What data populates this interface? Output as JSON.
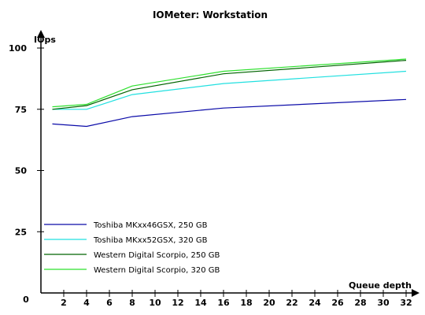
{
  "chart_data": {
    "type": "line",
    "title": "IOMeter: Workstation",
    "xlabel": "Queue depth",
    "ylabel": "IOps",
    "x": [
      1,
      4,
      8,
      16,
      32
    ],
    "xticks": [
      "0",
      "2",
      "4",
      "6",
      "8",
      "10",
      "12",
      "14",
      "16",
      "18",
      "20",
      "22",
      "24",
      "26",
      "28",
      "30",
      "32"
    ],
    "yticks": [
      "0",
      "25",
      "50",
      "75",
      "100"
    ],
    "ylim": [
      0,
      100
    ],
    "grid": false,
    "legend_position": "bottom-left",
    "series": [
      {
        "name": "Toshiba MKxx46GSX, 250 GB",
        "color": "#0a0aa8",
        "values": [
          69,
          68,
          72,
          75.5,
          79
        ]
      },
      {
        "name": "Toshiba MKxx52GSX, 320 GB",
        "color": "#22e0e0",
        "values": [
          75,
          75,
          81,
          85.5,
          90.5
        ]
      },
      {
        "name": "Western Digital Scorpio, 250 GB",
        "color": "#006400",
        "values": [
          75,
          76.5,
          83,
          89.5,
          95
        ]
      },
      {
        "name": "Western Digital Scorpio, 320 GB",
        "color": "#2ee02e",
        "values": [
          76,
          77,
          84.5,
          90.5,
          95.5
        ]
      }
    ]
  }
}
